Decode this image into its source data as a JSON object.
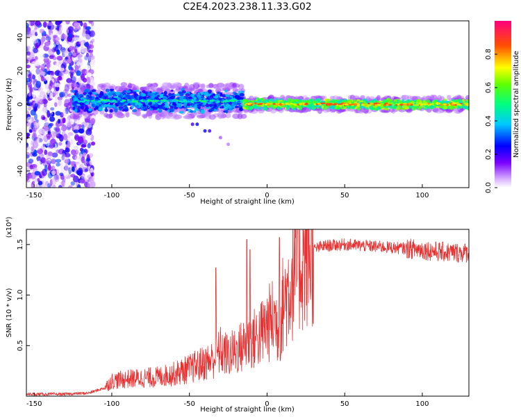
{
  "title": "C2E4.2023.238.11.33.G02",
  "chart_data": [
    {
      "type": "heatmap",
      "description_of_content": "spectrogram",
      "xlabel": "Height of straight line (km)",
      "ylabel": "Frequency (Hz)",
      "xlim": [
        -155,
        130
      ],
      "ylim": [
        -50,
        50
      ],
      "xticks": [
        "-150",
        "-100",
        "-50",
        "0",
        "50",
        "100"
      ],
      "yticks": [
        "-40",
        "-20",
        "0",
        "20",
        "40"
      ],
      "colorbar": {
        "label": "Normalized spectral amplitude",
        "range": [
          0,
          1
        ],
        "ticks": [
          "0.0",
          "0.2",
          "0.4",
          "0.6",
          "0.8"
        ]
      },
      "features": [
        {
          "kind": "noise",
          "x_range": [
            -155,
            -112
          ],
          "y_range": [
            -50,
            50
          ],
          "amplitude": [
            0.0,
            0.3
          ]
        },
        {
          "kind": "signal_band",
          "x_range": [
            -125,
            -15
          ],
          "center_hz": 2,
          "halfwidth_hz": 7,
          "amplitude": [
            0.2,
            0.55
          ]
        },
        {
          "kind": "signal_band",
          "x_range": [
            -15,
            130
          ],
          "center_hz": 0,
          "halfwidth_hz": 3,
          "amplitude": [
            0.4,
            0.9
          ]
        }
      ]
    },
    {
      "type": "line",
      "xlabel": "Height of straight line (km)",
      "ylabel": "SNR (10 * v/v)",
      "y_multiplier": "(x10⁴)",
      "xlim": [
        -155,
        130
      ],
      "ylim": [
        0,
        1.65
      ],
      "xticks": [
        "-150",
        "-100",
        "-50",
        "0",
        "50",
        "100"
      ],
      "yticks": [
        "0.5",
        "1.0",
        "1.5"
      ],
      "series": [
        {
          "color": "#e83030",
          "x": [
            -155,
            -130,
            -115,
            -105,
            -100,
            -90,
            -80,
            -70,
            -60,
            -50,
            -40,
            -35,
            -30,
            -25,
            -20,
            -15,
            -10,
            -5,
            0,
            5,
            8,
            10,
            15,
            20,
            25,
            30,
            35,
            40,
            50,
            60,
            70,
            80,
            90,
            100,
            110,
            120,
            130
          ],
          "y": [
            0.02,
            0.02,
            0.03,
            0.08,
            0.15,
            0.17,
            0.18,
            0.19,
            0.22,
            0.27,
            0.33,
            0.36,
            0.45,
            0.4,
            0.45,
            0.5,
            0.55,
            0.6,
            0.7,
            0.78,
            0.62,
            0.9,
            1.12,
            1.3,
            1.4,
            1.45,
            1.48,
            1.49,
            1.5,
            1.49,
            1.48,
            1.47,
            1.46,
            1.45,
            1.43,
            1.42,
            1.42
          ],
          "spike_peaks": [
            {
              "x": -33,
              "y": 1.27
            },
            {
              "x": -13,
              "y": 1.55
            },
            {
              "x": -11,
              "y": 1.45
            },
            {
              "x": 8,
              "y": 1.57
            }
          ]
        }
      ]
    }
  ],
  "colors": {
    "line": "#e83030",
    "axis": "#000000",
    "background": "#ffffff"
  }
}
